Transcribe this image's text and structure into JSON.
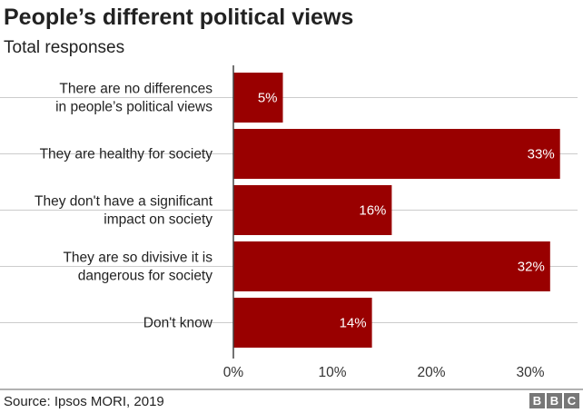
{
  "chart_data": {
    "type": "bar",
    "orientation": "horizontal",
    "title": "People’s different political views",
    "subtitle": "Total responses",
    "categories": [
      [
        "There are no differences",
        "in people’s political views"
      ],
      [
        "They are healthy for society"
      ],
      [
        "They don't have a significant",
        "impact on society"
      ],
      [
        "They are so divisive it is",
        "dangerous for society"
      ],
      [
        "Don't know"
      ]
    ],
    "values": [
      5,
      33,
      16,
      32,
      14
    ],
    "value_labels": [
      "5%",
      "33%",
      "16%",
      "32%",
      "14%"
    ],
    "xlim": [
      0,
      33
    ],
    "xticks": [
      0,
      10,
      20,
      30
    ],
    "xtick_labels": [
      "0%",
      "10%",
      "20%",
      "30%"
    ],
    "xlabel": "",
    "ylabel": "",
    "grid": true,
    "bar_color": "#990000",
    "source": "Source: Ipsos MORI, 2019",
    "logo": [
      "B",
      "B",
      "C"
    ]
  }
}
